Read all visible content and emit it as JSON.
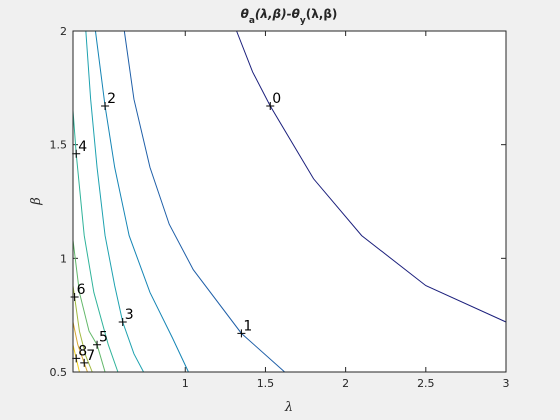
{
  "chart_data": {
    "type": "contour",
    "title_parts": [
      "θ",
      "a",
      "(λ,β)-θ",
      "y",
      "(λ,β)"
    ],
    "xlabel": "λ",
    "ylabel": "β",
    "xlim": [
      0.3,
      3
    ],
    "ylim": [
      0.5,
      2
    ],
    "xticks": [
      1,
      1.5,
      2,
      2.5,
      3
    ],
    "yticks": [
      0.5,
      1,
      1.5,
      2
    ],
    "grid": false,
    "contours": [
      {
        "level": 0,
        "color": "#1b1f7c",
        "x": [
          1.32,
          1.42,
          1.53,
          1.8,
          2.1,
          2.5,
          3
        ],
        "y": [
          2,
          1.82,
          1.67,
          1.35,
          1.1,
          0.88,
          0.72
        ],
        "label_x": 1.53,
        "label_y": 1.67
      },
      {
        "level": 1,
        "color": "#1f5fa8",
        "x": [
          0.62,
          0.68,
          0.78,
          0.9,
          1.05,
          1.35,
          1.62
        ],
        "y": [
          2,
          1.7,
          1.4,
          1.15,
          0.95,
          0.67,
          0.5
        ],
        "label_x": 1.35,
        "label_y": 0.67
      },
      {
        "level": 2,
        "color": "#1585b5",
        "x": [
          0.44,
          0.5,
          0.56,
          0.65,
          0.78,
          0.92,
          1.02
        ],
        "y": [
          2,
          1.67,
          1.4,
          1.1,
          0.85,
          0.65,
          0.5
        ],
        "label_x": 0.5,
        "label_y": 1.67
      },
      {
        "level": 3,
        "color": "#1ea2b0",
        "x": [
          0.38,
          0.41,
          0.45,
          0.5,
          0.56,
          0.61,
          0.68,
          0.74
        ],
        "y": [
          2,
          1.7,
          1.4,
          1.1,
          0.88,
          0.72,
          0.58,
          0.5
        ],
        "label_x": 0.61,
        "label_y": 0.72
      },
      {
        "level": 4,
        "color": "#2fb39a",
        "x": [
          0.3,
          0.32,
          0.37,
          0.43,
          0.52,
          0.58
        ],
        "y": [
          1.65,
          1.46,
          1.1,
          0.85,
          0.62,
          0.5
        ],
        "label_x": 0.32,
        "label_y": 1.46
      },
      {
        "level": 5,
        "color": "#62b86a",
        "x": [
          0.3,
          0.34,
          0.4,
          0.45,
          0.5
        ],
        "y": [
          1.08,
          0.85,
          0.68,
          0.62,
          0.5
        ],
        "label_x": 0.45,
        "label_y": 0.62
      },
      {
        "level": 6,
        "color": "#a2b940",
        "x": [
          0.3,
          0.31,
          0.34,
          0.38,
          0.42
        ],
        "y": [
          0.88,
          0.83,
          0.68,
          0.57,
          0.5
        ],
        "label_x": 0.31,
        "label_y": 0.83
      },
      {
        "level": 7,
        "color": "#d8a834",
        "x": [
          0.3,
          0.33,
          0.37,
          0.39
        ],
        "y": [
          0.72,
          0.62,
          0.54,
          0.5
        ],
        "label_x": 0.37,
        "label_y": 0.54
      },
      {
        "level": 8,
        "color": "#f0d020",
        "x": [
          0.3,
          0.32,
          0.34
        ],
        "y": [
          0.62,
          0.56,
          0.5
        ],
        "label_x": 0.32,
        "label_y": 0.56
      }
    ]
  }
}
